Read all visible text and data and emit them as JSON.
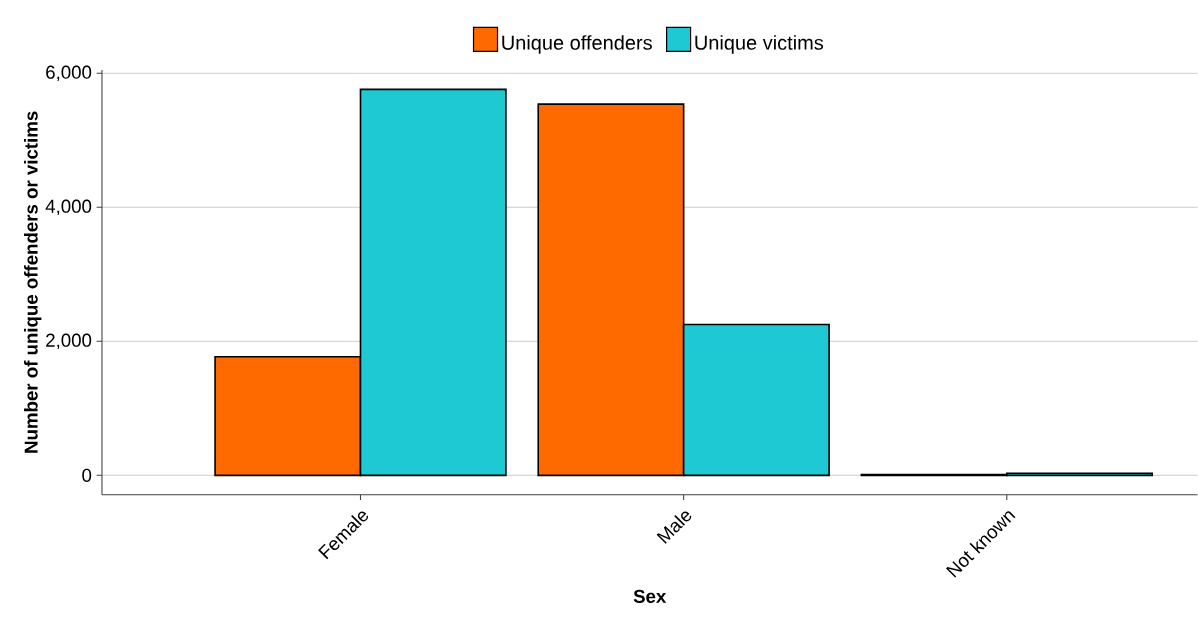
{
  "chart_data": {
    "type": "bar",
    "xlabel": "Sex",
    "ylabel": "Number of unique offenders or victims",
    "categories": [
      "Female",
      "Male",
      "Not known"
    ],
    "series": [
      {
        "name": "Unique offenders",
        "color": "#ff6a00",
        "values": [
          1770,
          5540,
          10
        ]
      },
      {
        "name": "Unique victims",
        "color": "#1fc9d3",
        "values": [
          5760,
          2250,
          30
        ]
      }
    ],
    "ylim": [
      -290,
      6050
    ],
    "yticks": [
      0,
      {
        "value": 2000,
        "label": "2,000"
      },
      {
        "value": 4000,
        "label": "4,000"
      },
      {
        "value": 6000,
        "label": "6,000"
      }
    ],
    "grid": "y",
    "legend": "top"
  }
}
